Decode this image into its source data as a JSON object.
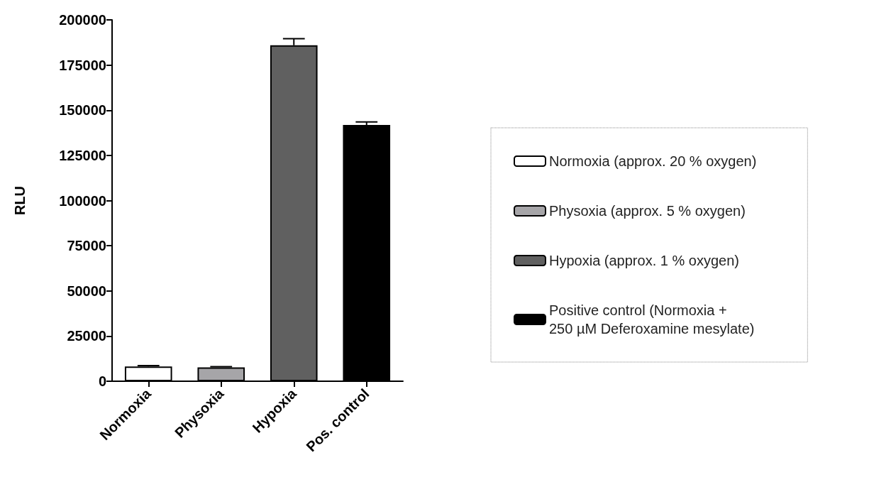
{
  "chart_data": {
    "type": "bar",
    "ylabel": "RLU",
    "categories": [
      "Normoxia",
      "Physoxia",
      "Hypoxia",
      "Pos. control"
    ],
    "series": [
      {
        "name": "Normoxia (approx. 20 % oxygen)",
        "color": "#ffffff",
        "values": [
          8200,
          null,
          null,
          null
        ],
        "errors": [
          [
            8200,
            8600
          ],
          null,
          null,
          null
        ]
      },
      {
        "name": "Physoxia (approx. 5 % oxygen)",
        "color": "#a6a5a8",
        "values": [
          null,
          7700,
          null,
          null
        ],
        "errors": [
          null,
          [
            7700,
            8100
          ],
          null,
          null
        ]
      },
      {
        "name": "Hypoxia (approx. 1 % oxygen)",
        "color": "#606060",
        "values": [
          null,
          null,
          186000,
          null
        ],
        "errors": [
          null,
          null,
          [
            186000,
            189600
          ],
          null
        ]
      },
      {
        "name": "Positive control (Normoxia + 250 µM Deferoxamine mesylate)",
        "color": "#000000",
        "values": [
          null,
          null,
          null,
          141800
        ],
        "errors": [
          null,
          null,
          null,
          [
            141800,
            143500
          ]
        ]
      }
    ],
    "ylim": [
      0,
      200000
    ],
    "yticks": [
      0,
      25000,
      50000,
      75000,
      100000,
      125000,
      150000,
      175000,
      200000
    ],
    "grid": false,
    "legend": "right"
  }
}
